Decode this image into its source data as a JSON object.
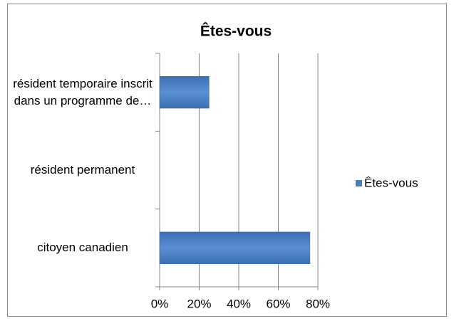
{
  "chart_data": {
    "type": "bar",
    "orientation": "horizontal",
    "title": "Êtes-vous",
    "categories": [
      "citoyen canadien",
      "résident permanent",
      "résident temporaire inscrit dans un programme de…"
    ],
    "series": [
      {
        "name": "Êtes-vous",
        "color": "#4a7ebb",
        "values": [
          76,
          0,
          25
        ]
      }
    ],
    "xlim": [
      0,
      80
    ],
    "xticks": [
      {
        "value": 0,
        "label": "0%"
      },
      {
        "value": 20,
        "label": "20%"
      },
      {
        "value": 40,
        "label": "40%"
      },
      {
        "value": 60,
        "label": "60%"
      },
      {
        "value": 80,
        "label": "80%"
      }
    ],
    "grid": true,
    "legend": "right"
  }
}
